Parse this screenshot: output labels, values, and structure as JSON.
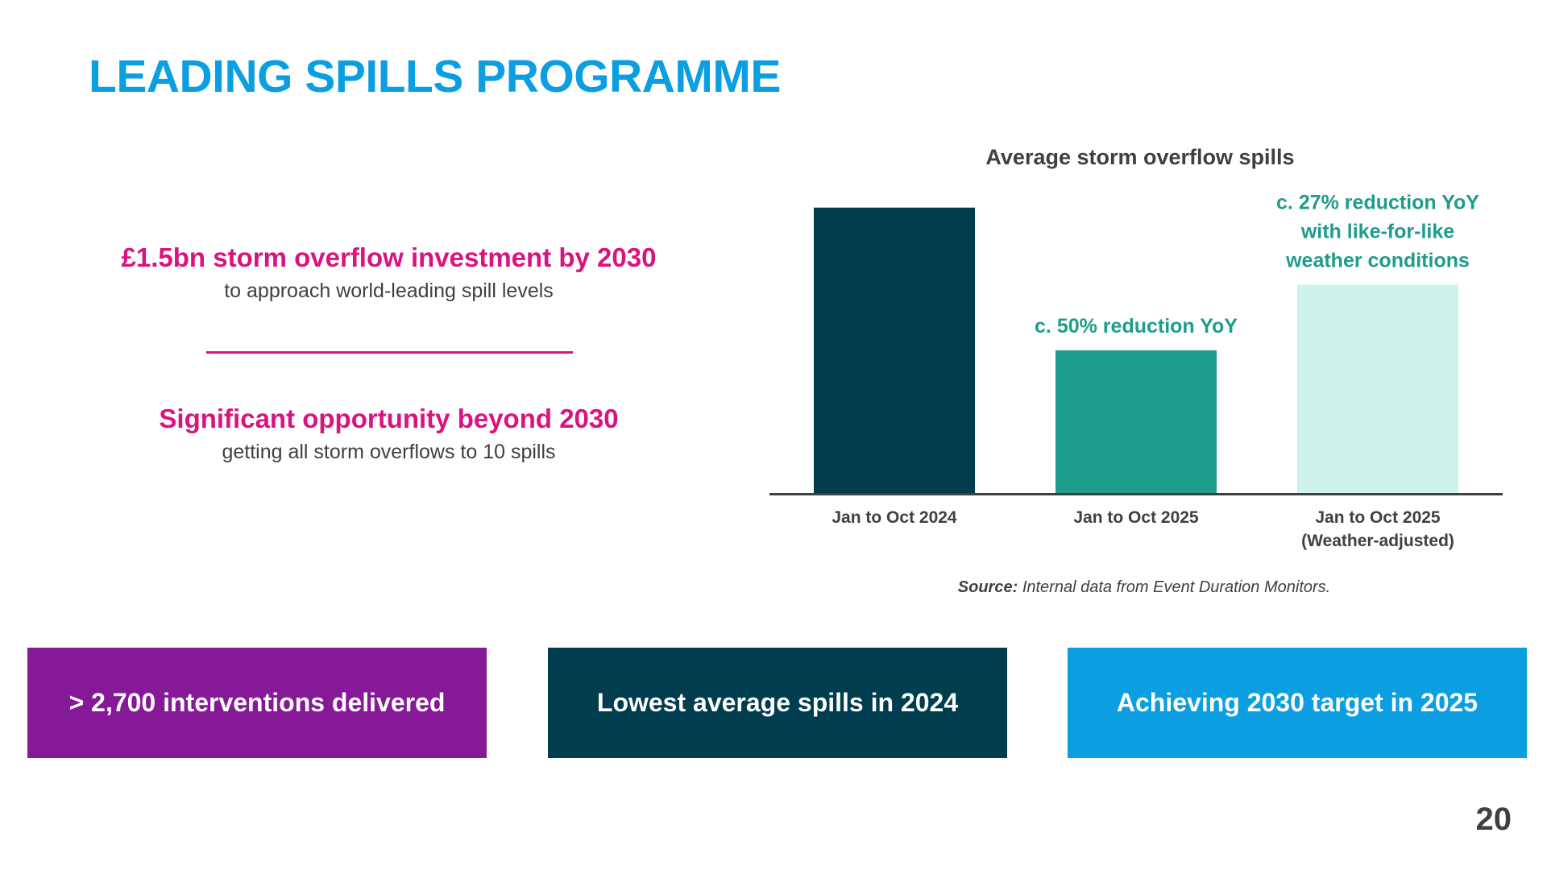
{
  "title": "LEADING SPILLS PROGRAMME",
  "points": [
    {
      "headline": "£1.5bn storm overflow investment by 2030",
      "sub": "to approach world-leading spill levels"
    },
    {
      "headline": "Significant opportunity beyond 2030",
      "sub": "getting all storm overflows to 10 spills"
    }
  ],
  "chart_data": {
    "type": "bar",
    "title": "Average storm overflow spills",
    "categories": [
      [
        "Jan to Oct 2024"
      ],
      [
        "Jan to Oct 2025"
      ],
      [
        "Jan to Oct 2025",
        "(Weather-adjusted)"
      ]
    ],
    "values": [
      100,
      50,
      73
    ],
    "bar_colors": [
      "#003d4f",
      "#1e9c8c",
      "#ccf3ec"
    ],
    "annotations": [
      [],
      [
        "c. 50% reduction YoY"
      ],
      [
        "c. 27% reduction YoY",
        "with like-for-like",
        "weather conditions"
      ]
    ],
    "annotation_color": "#1e9c8c",
    "ylim": [
      0,
      105
    ],
    "grid": false,
    "legend": "none"
  },
  "source": {
    "label": "Source:",
    "text": "Internal data from Event Duration Monitors."
  },
  "kpis": [
    {
      "text": "> 2,700 interventions delivered",
      "color": "#861997"
    },
    {
      "text": "Lowest average spills in 2024",
      "color": "#003d4f"
    },
    {
      "text": "Achieving 2030 target in 2025",
      "color": "#0b9fe1"
    }
  ],
  "page_number": "20"
}
